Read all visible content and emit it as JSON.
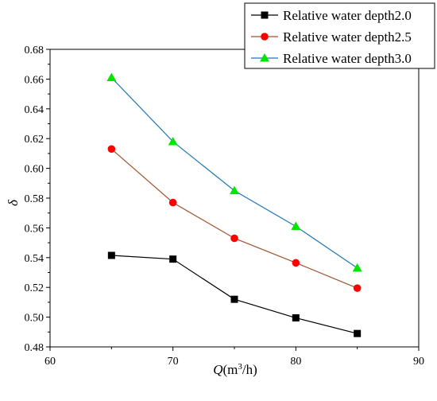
{
  "chart_data": {
    "type": "line",
    "x": [
      65,
      70,
      75,
      80,
      85
    ],
    "xlabel_var": "Q",
    "xlabel_unit_pre": "(m",
    "xlabel_unit_sup": "3",
    "xlabel_unit_post": "/h)",
    "ylabel": "δ",
    "xlim": [
      60,
      90
    ],
    "ylim": [
      0.48,
      0.68
    ],
    "xticks": [
      60,
      70,
      80,
      90
    ],
    "yticks": [
      "0.48",
      "0.50",
      "0.52",
      "0.54",
      "0.56",
      "0.58",
      "0.60",
      "0.62",
      "0.64",
      "0.66",
      "0.68"
    ],
    "grid": false,
    "legend_position": "top-right",
    "series": [
      {
        "name": "Relative water depth2.0",
        "color": "#000000",
        "marker_color": "#000000",
        "marker": "square",
        "values": [
          0.5415,
          0.539,
          0.512,
          0.4995,
          0.489
        ]
      },
      {
        "name": "Relative water depth2.5",
        "color": "#a0522d",
        "marker_color": "#ff0000",
        "marker": "circle",
        "values": [
          0.613,
          0.577,
          0.553,
          0.5365,
          0.5195
        ]
      },
      {
        "name": "Relative water depth3.0",
        "color": "#1f77b4",
        "marker_color": "#00e600",
        "marker": "triangle",
        "values": [
          0.661,
          0.618,
          0.585,
          0.561,
          0.533
        ]
      }
    ]
  }
}
